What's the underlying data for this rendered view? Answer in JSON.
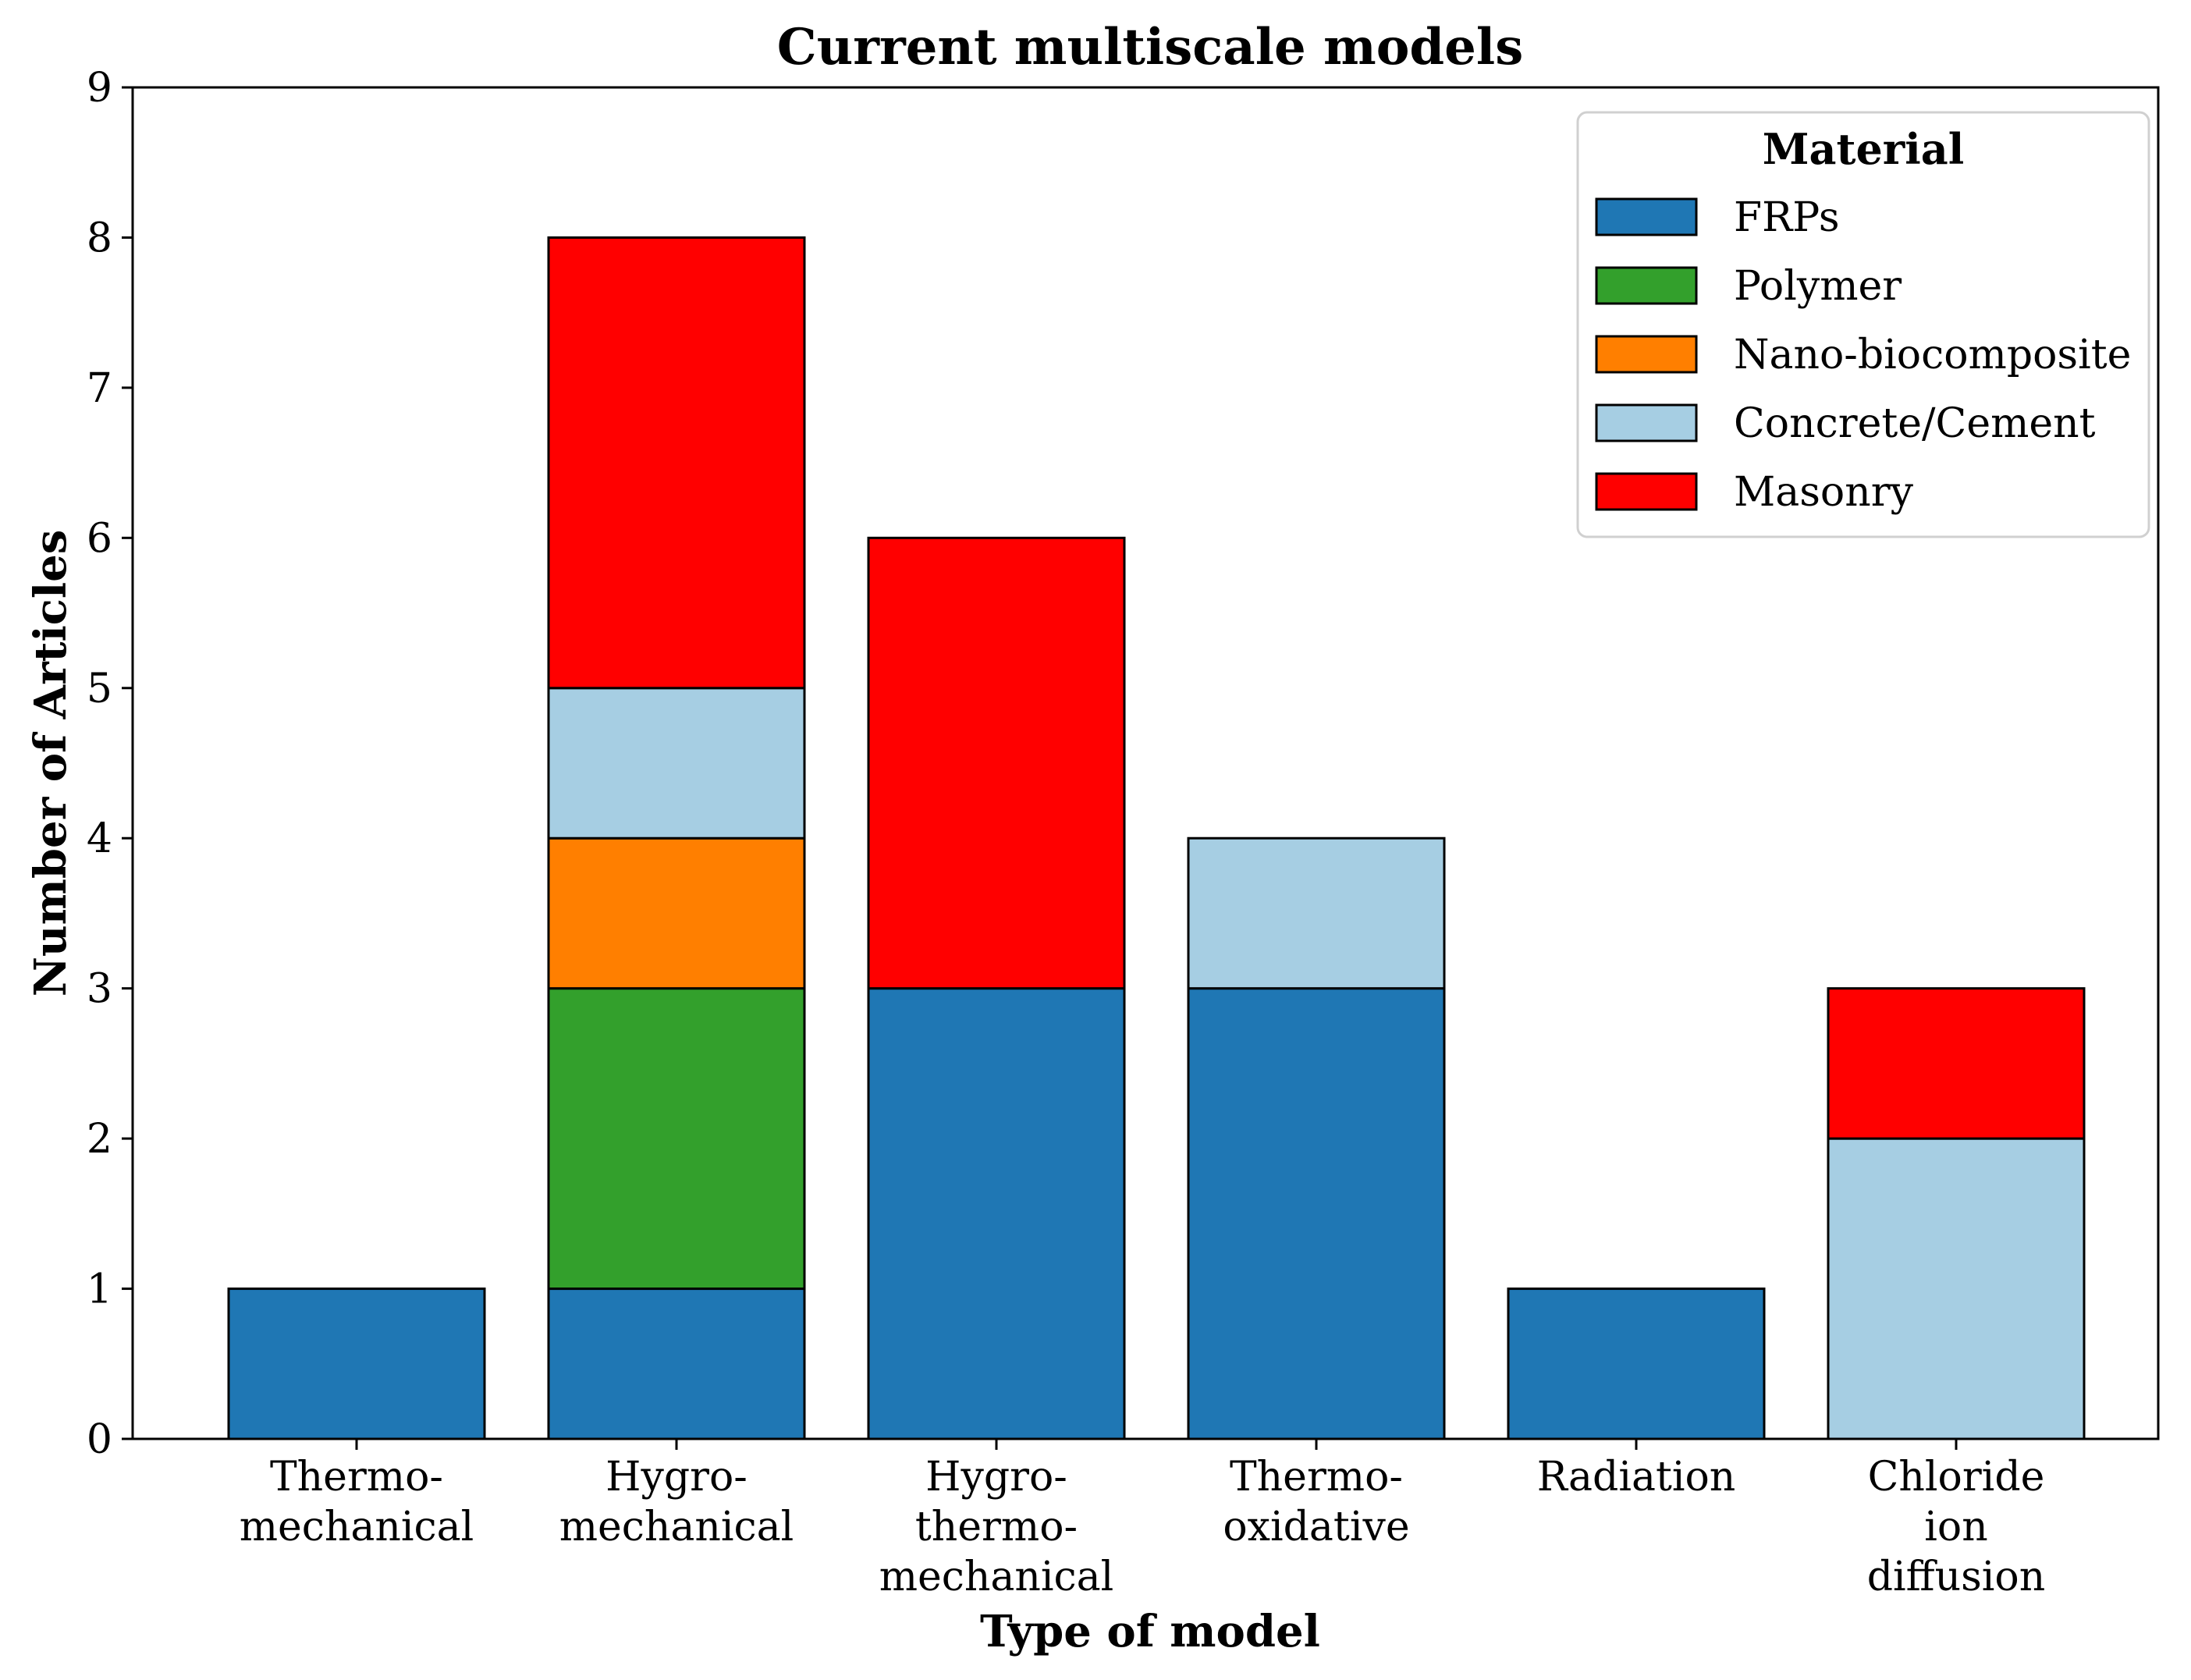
{
  "chart_data": {
    "type": "bar",
    "stacked": true,
    "title": "Current multiscale models",
    "xlabel": "Type of model",
    "ylabel": "Number of Articles",
    "ylim": [
      0,
      9
    ],
    "yticks": [
      "0",
      "1",
      "2",
      "3",
      "4",
      "5",
      "6",
      "7",
      "8",
      "9"
    ],
    "categories": [
      [
        "Thermo-",
        "mechanical"
      ],
      [
        "Hygro-",
        "mechanical"
      ],
      [
        "Hygro-",
        "thermo-",
        "mechanical"
      ],
      [
        "Thermo-",
        "oxidative"
      ],
      [
        "Radiation"
      ],
      [
        "Chloride",
        "ion",
        "diffusion"
      ]
    ],
    "legend_title": "Material",
    "legend_position": "top-right",
    "series": [
      {
        "name": "FRPs",
        "color": "#1f77b4",
        "values": [
          1,
          1,
          3,
          3,
          1,
          0
        ]
      },
      {
        "name": "Polymer",
        "color": "#33a02c",
        "values": [
          0,
          2,
          0,
          0,
          0,
          0
        ]
      },
      {
        "name": "Nano-biocomposite",
        "color": "#ff7f00",
        "values": [
          0,
          1,
          0,
          0,
          0,
          0
        ]
      },
      {
        "name": "Concrete/Cement",
        "color": "#a6cee3",
        "values": [
          0,
          1,
          0,
          1,
          0,
          2
        ]
      },
      {
        "name": "Masonry",
        "color": "#ff0000",
        "values": [
          0,
          3,
          3,
          0,
          0,
          1
        ]
      }
    ]
  }
}
